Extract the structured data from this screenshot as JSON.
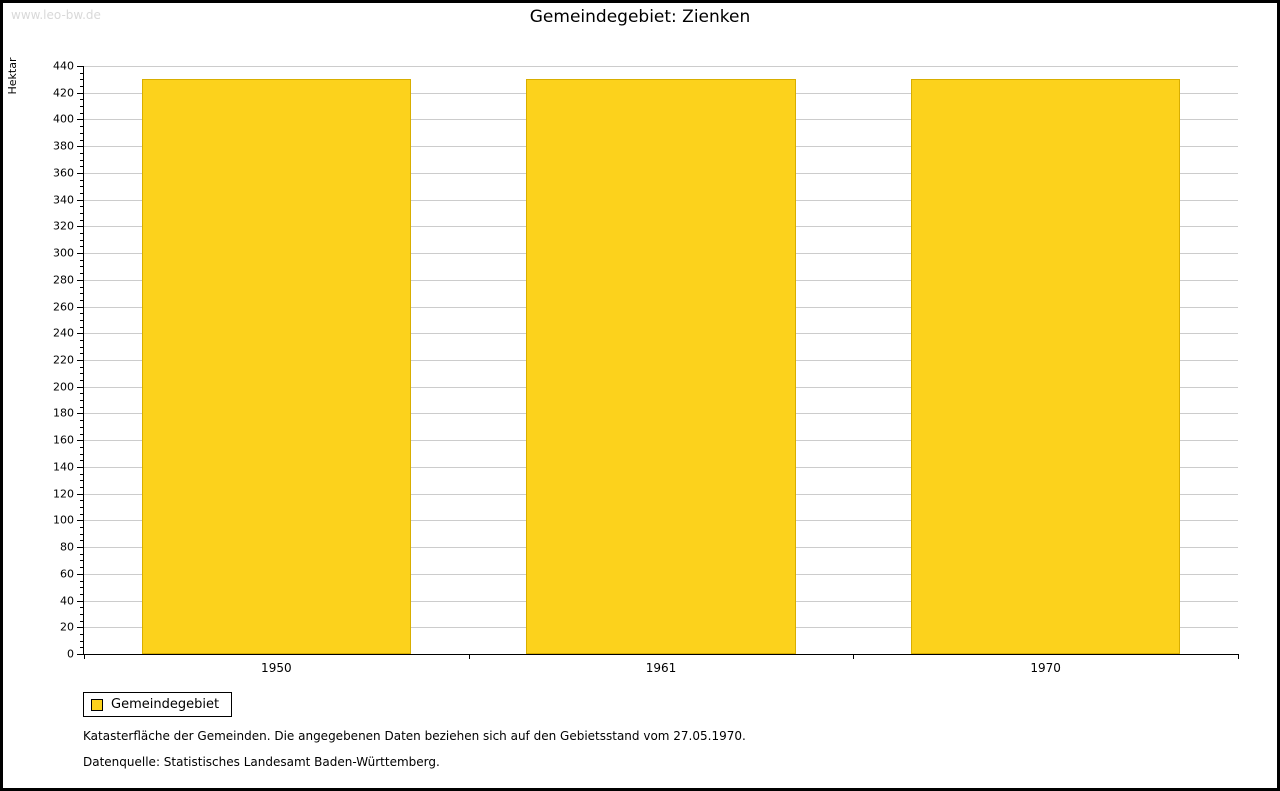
{
  "watermark": "www.leo-bw.de",
  "title": "Gemeindegebiet: Zienken",
  "chart_data": {
    "type": "bar",
    "title": "Gemeindegebiet: Zienken",
    "categories": [
      "1950",
      "1961",
      "1970"
    ],
    "values": [
      430,
      430,
      430
    ],
    "series_name": "Gemeindegebiet",
    "xlabel": "",
    "ylabel": "Hektar",
    "ylim": [
      0,
      440
    ],
    "ytick_step": 20,
    "ytick_minor_step": 5,
    "grid": true,
    "legend_position": "bottom-left",
    "bar_color": "#FCD21C",
    "bar_border_color": "#D8AE00",
    "grid_color": "#cccccc",
    "axis_color": "#000000"
  },
  "legend": {
    "label": "Gemeindegebiet"
  },
  "footnotes": {
    "line1": "Katasterfläche der Gemeinden. Die angegebenen Daten beziehen sich auf den Gebietsstand vom 27.05.1970.",
    "line2": "Datenquelle: Statistisches Landesamt Baden-Württemberg."
  }
}
